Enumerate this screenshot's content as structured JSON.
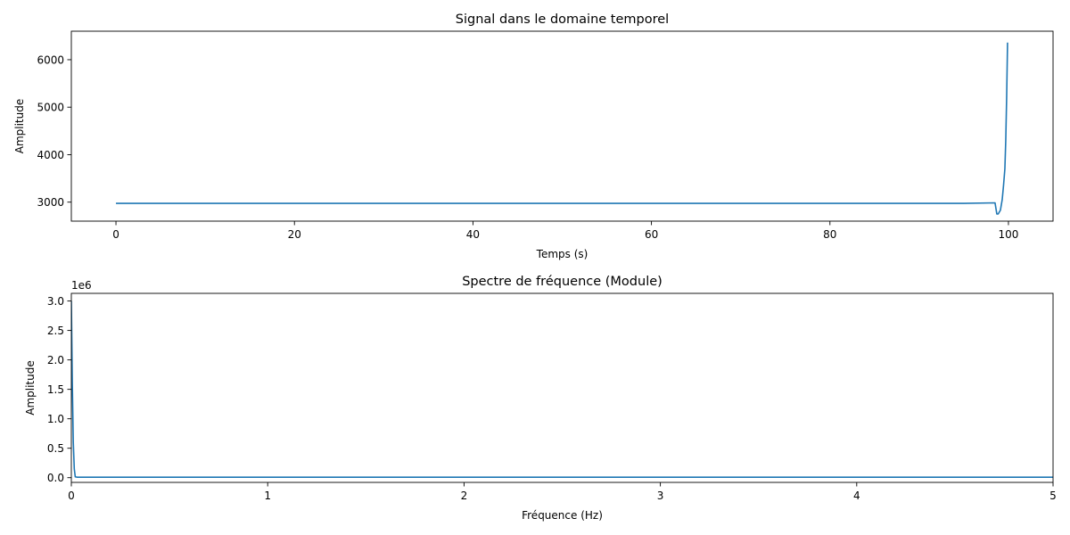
{
  "chart_data": [
    {
      "type": "line",
      "title": "Signal dans le domaine temporel",
      "xlabel": "Temps (s)",
      "ylabel": "Amplitude",
      "xlim": [
        -5,
        105
      ],
      "ylim": [
        2600,
        6600
      ],
      "xticks": [
        0,
        20,
        40,
        60,
        80,
        100
      ],
      "xtick_labels": [
        "0",
        "20",
        "40",
        "60",
        "80",
        "100"
      ],
      "yticks": [
        3000,
        4000,
        5000,
        6000
      ],
      "ytick_labels": [
        "3000",
        "4000",
        "5000",
        "6000"
      ],
      "offset_text": "",
      "grid": false,
      "series": [
        {
          "color": "#1f77b4",
          "x": [
            0,
            20,
            40,
            60,
            80,
            95,
            98.5,
            98.7,
            98.85,
            99.1,
            99.3,
            99.45,
            99.6,
            99.7,
            99.8,
            99.9
          ],
          "y": [
            2975,
            2975,
            2975,
            2975,
            2975,
            2975,
            2985,
            2750,
            2750,
            2830,
            3050,
            3350,
            3700,
            4300,
            5200,
            6360
          ]
        }
      ]
    },
    {
      "type": "line",
      "title": "Spectre de fréquence (Module)",
      "xlabel": "Fréquence (Hz)",
      "ylabel": "Amplitude",
      "xlim": [
        0,
        5
      ],
      "ylim": [
        -80000,
        3130000
      ],
      "xticks": [
        0,
        1,
        2,
        3,
        4,
        5
      ],
      "xtick_labels": [
        "0",
        "1",
        "2",
        "3",
        "4",
        "5"
      ],
      "yticks": [
        0,
        500000,
        1000000,
        1500000,
        2000000,
        2500000,
        3000000
      ],
      "ytick_labels": [
        "0.0",
        "0.5",
        "1.0",
        "1.5",
        "2.0",
        "2.5",
        "3.0"
      ],
      "offset_text": "1e6",
      "grid": false,
      "series": [
        {
          "color": "#1f77b4",
          "x": [
            0,
            0.005,
            0.01,
            0.015,
            0.02,
            0.03,
            1,
            2,
            3,
            4,
            5
          ],
          "y": [
            3000000,
            1600000,
            600000,
            150000,
            15000,
            8000,
            8000,
            8000,
            8000,
            8000,
            8000
          ]
        }
      ]
    }
  ]
}
